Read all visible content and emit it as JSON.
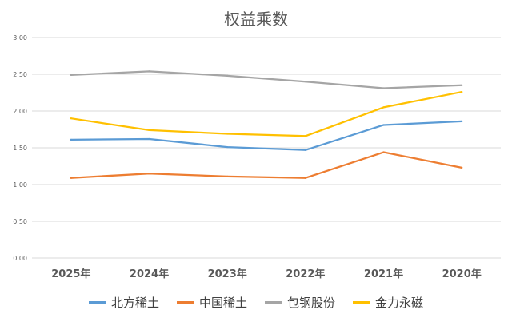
{
  "chart_data": {
    "type": "line",
    "title": "权益乘数",
    "xlabel": "",
    "ylabel": "",
    "categories": [
      "2025年",
      "2024年",
      "2023年",
      "2022年",
      "2021年",
      "2020年"
    ],
    "ylim": [
      0,
      3
    ],
    "yticks": [
      "0.00",
      "0.50",
      "1.00",
      "1.50",
      "2.00",
      "2.50",
      "3.00"
    ],
    "grid": true,
    "legend_position": "bottom",
    "series": [
      {
        "name": "北方稀土",
        "color": "#5B9BD5",
        "values": [
          1.61,
          1.62,
          1.51,
          1.47,
          1.81,
          1.86
        ]
      },
      {
        "name": "中国稀土",
        "color": "#ED7D31",
        "values": [
          1.09,
          1.15,
          1.11,
          1.09,
          1.44,
          1.23
        ]
      },
      {
        "name": "包钢股份",
        "color": "#A5A5A5",
        "values": [
          2.49,
          2.54,
          2.48,
          2.4,
          2.31,
          2.35
        ]
      },
      {
        "name": "金力永磁",
        "color": "#FFC000",
        "values": [
          1.9,
          1.74,
          1.69,
          1.66,
          2.05,
          2.26
        ]
      }
    ]
  }
}
